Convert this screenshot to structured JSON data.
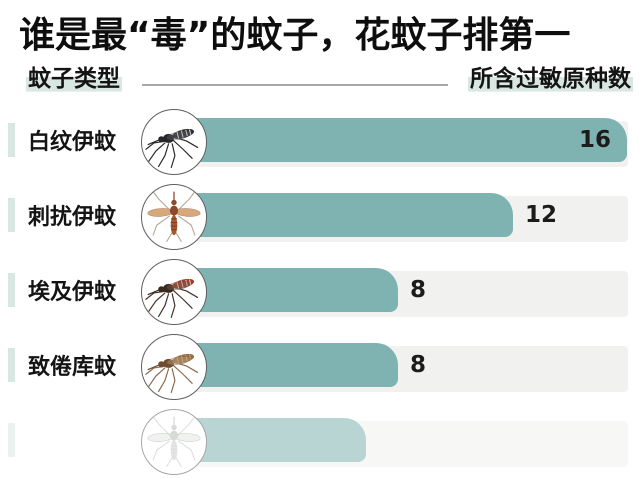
{
  "title": "谁是最“毒”的蚊子，花蚊子排第一",
  "header": {
    "left_label": "蚊子类型",
    "right_label": "所含过敏原种数"
  },
  "colors": {
    "bar_teal": "#7fb3b1",
    "track_gray": "#f1f1ef",
    "highlight_sage": "#d9e7e2",
    "text_dark": "#141414",
    "header_line_gray": "#a8a8a8"
  },
  "chart_data": {
    "type": "bar",
    "orientation": "horizontal",
    "title": "谁是最“毒”的蚊子，花蚊子排第一",
    "category_axis_label": "蚊子类型",
    "value_axis_label": "所含过敏原种数",
    "categories": [
      "白纹伊蚊",
      "刺扰伊蚊",
      "埃及伊蚊",
      "致倦库蚊"
    ],
    "values": [
      16,
      12,
      8,
      8
    ],
    "xlim": [
      0,
      16
    ],
    "grid": false,
    "legend": false,
    "value_labels": "shown at end of each bar",
    "partial_fifth_row_cut_off_at_bottom": true,
    "rows": [
      {
        "label": "白纹伊蚊",
        "value": 16,
        "icon": "tiger-mosquito-icon",
        "variant": "side",
        "icon_colors": {
          "body": "#26262a",
          "abdomen": "#303036",
          "stripe": "#f2f2f2",
          "wing": "rgba(110,110,115,0.35)",
          "leg": "#2a2a2e"
        }
      },
      {
        "label": "刺扰伊蚊",
        "value": 12,
        "icon": "vexans-mosquito-icon",
        "variant": "top",
        "icon_colors": {
          "body": "#8a4a2b",
          "abdomen": "#a3582f",
          "stripe": "#7a3c22",
          "wing": "#d8a878",
          "leg": "#b7a694"
        }
      },
      {
        "label": "埃及伊蚊",
        "value": 8,
        "icon": "aegypti-mosquito-icon",
        "variant": "side",
        "icon_colors": {
          "body": "#39291f",
          "abdomen": "#a43a28",
          "stripe": "#e8d9c8",
          "wing": "rgba(120,105,90,0.4)",
          "leg": "#43302a"
        }
      },
      {
        "label": "致倦库蚊",
        "value": 8,
        "icon": "culex-mosquito-icon",
        "variant": "side",
        "icon_colors": {
          "body": "#6d4c30",
          "abdomen": "#966b42",
          "stripe": "#c9a87c",
          "wing": "rgba(190,160,120,0.45)",
          "leg": "#8a6a4e"
        }
      },
      {
        "label": "",
        "value": null,
        "partial": true,
        "icon": "mosquito-icon",
        "variant": "top",
        "icon_colors": {
          "body": "#b9bdba",
          "abdomen": "#c6cac7",
          "stripe": "#d5d8d5",
          "wing": "rgba(190,195,192,0.4)",
          "leg": "#c2c6c3"
        }
      }
    ]
  }
}
